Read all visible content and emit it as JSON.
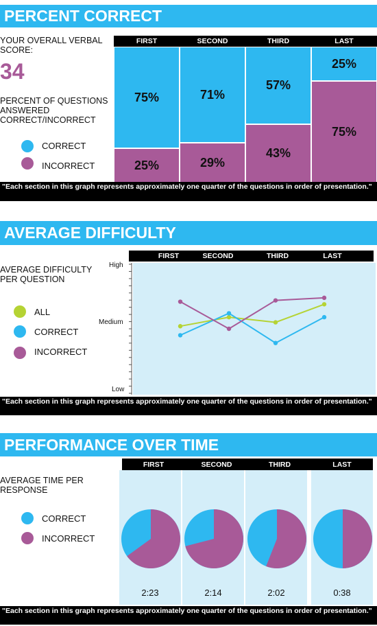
{
  "colors": {
    "banner": "#2eb8f0",
    "correct": "#2eb8f0",
    "incorrect": "#a85a98",
    "all": "#b5d334",
    "panel_bg": "#d4eef9",
    "score": "#a85a98"
  },
  "section1": {
    "title": "PERCENT CORRECT",
    "score_label": "YOUR OVERALL VERBAL SCORE:",
    "score": "34",
    "desc": "PERCENT OF QUESTIONS ANSWERED CORRECT/INCORRECT",
    "legend": [
      {
        "label": "CORRECT",
        "color": "#2eb8f0"
      },
      {
        "label": "INCORRECT",
        "color": "#a85a98"
      }
    ],
    "note": "\"Each section in this graph represents approximately one quarter of the questions in order of presentation.\""
  },
  "section2": {
    "title": "AVERAGE DIFFICULTY",
    "desc": "AVERAGE DIFFICULTY PER QUESTION",
    "legend": [
      {
        "label": "ALL",
        "color": "#b5d334"
      },
      {
        "label": "CORRECT",
        "color": "#2eb8f0"
      },
      {
        "label": "INCORRECT",
        "color": "#a85a98"
      }
    ],
    "yticks": {
      "high": "High",
      "medium": "Medium",
      "low": "Low"
    },
    "note": "\"Each section in this graph represents approximately one quarter of the questions in order of presentation.\""
  },
  "section3": {
    "title": "PERFORMANCE OVER TIME",
    "desc": "AVERAGE TIME PER RESPONSE",
    "legend": [
      {
        "label": "CORRECT",
        "color": "#2eb8f0"
      },
      {
        "label": "INCORRECT",
        "color": "#a85a98"
      }
    ],
    "note": "\"Each section in this graph represents approximately one quarter of the questions in order of presentation.\""
  },
  "chart_data": [
    {
      "type": "bar",
      "title": "PERCENT CORRECT",
      "categories": [
        "FIRST",
        "SECOND",
        "THIRD",
        "LAST"
      ],
      "stacked": true,
      "series": [
        {
          "name": "CORRECT",
          "values": [
            75,
            71,
            57,
            25
          ],
          "labels": [
            "75%",
            "71%",
            "57%",
            "25%"
          ]
        },
        {
          "name": "INCORRECT",
          "values": [
            25,
            29,
            43,
            75
          ],
          "labels": [
            "25%",
            "29%",
            "43%",
            "75%"
          ]
        }
      ],
      "ylim": [
        0,
        100
      ]
    },
    {
      "type": "line",
      "title": "AVERAGE DIFFICULTY",
      "categories": [
        "FIRST",
        "SECOND",
        "THIRD",
        "LAST"
      ],
      "y_scale_note": "0 = Low, 1 = High, 0.5 = Medium",
      "ylim": [
        0,
        1
      ],
      "yticks": [
        "Low",
        "Medium",
        "High"
      ],
      "series": [
        {
          "name": "ALL",
          "values": [
            0.52,
            0.59,
            0.55,
            0.69
          ]
        },
        {
          "name": "CORRECT",
          "values": [
            0.45,
            0.62,
            0.39,
            0.59
          ]
        },
        {
          "name": "INCORRECT",
          "values": [
            0.71,
            0.5,
            0.72,
            0.74
          ]
        }
      ]
    },
    {
      "type": "pie",
      "title": "PERFORMANCE OVER TIME",
      "categories": [
        "FIRST",
        "SECOND",
        "THIRD",
        "LAST"
      ],
      "times": [
        "2:23",
        "2:14",
        "2:02",
        "0:38"
      ],
      "series": [
        {
          "name": "CORRECT",
          "values": [
            35,
            29,
            44,
            50
          ]
        },
        {
          "name": "INCORRECT",
          "values": [
            65,
            71,
            56,
            50
          ]
        }
      ]
    }
  ]
}
